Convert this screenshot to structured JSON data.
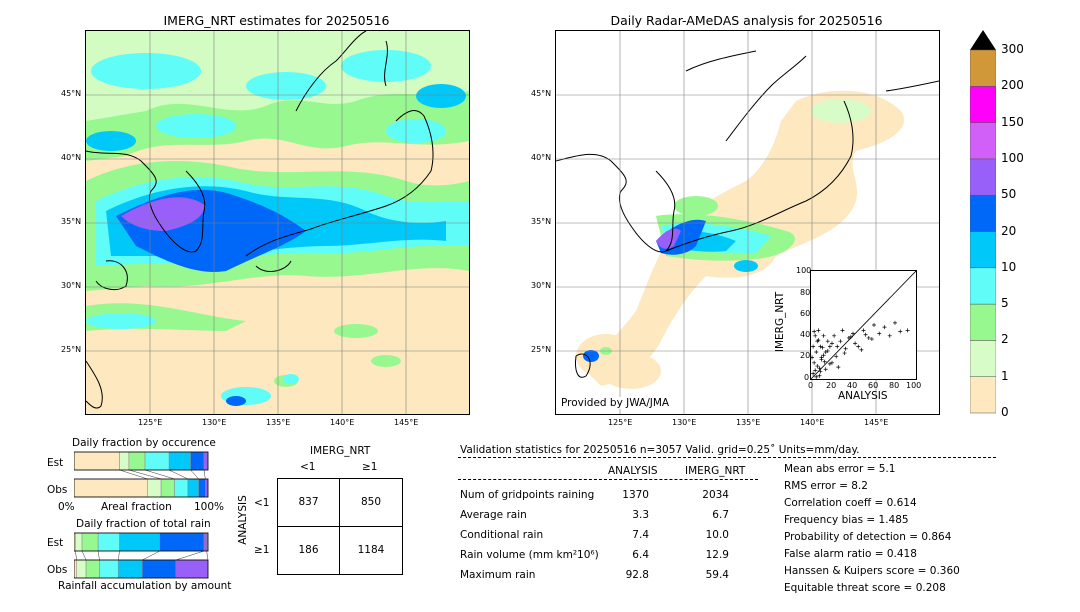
{
  "left_map": {
    "title": "IMERG_NRT estimates for 20250516",
    "lat_labels": [
      "45°N",
      "40°N",
      "35°N",
      "30°N",
      "25°N"
    ],
    "lon_labels": [
      "125°E",
      "130°E",
      "135°E",
      "140°E",
      "145°E"
    ]
  },
  "right_map": {
    "title": "Daily Radar-AMeDAS analysis for 20250516",
    "lat_labels": [
      "45°N",
      "40°N",
      "35°N",
      "30°N",
      "25°N"
    ],
    "lon_labels": [
      "125°E",
      "130°E",
      "135°E",
      "140°E",
      "145°E"
    ],
    "credit": "Provided by JWA/JMA"
  },
  "colorbar": {
    "levels": [
      "0",
      "1",
      "2",
      "5",
      "10",
      "20",
      "50",
      "100",
      "150",
      "200",
      "300"
    ],
    "colors": [
      "#fde8c0",
      "#d8fcc8",
      "#98f890",
      "#60fcf8",
      "#00c8f8",
      "#0068f8",
      "#9860f8",
      "#d060f8",
      "#ff00f8",
      "#d09838"
    ],
    "over_color": "#000000"
  },
  "scatter": {
    "xlabel": "ANALYSIS",
    "ylabel": "IMERG_NRT",
    "ticks": [
      "0",
      "20",
      "40",
      "60",
      "80",
      "100"
    ]
  },
  "occurrence": {
    "title": "Daily fraction by occurence",
    "rows": [
      "Est",
      "Obs"
    ],
    "axis_left": "0%",
    "axis_mid": "Areal fraction",
    "axis_right": "100%"
  },
  "total_rain": {
    "title": "Daily fraction of total rain",
    "rows": [
      "Est",
      "Obs"
    ],
    "footer": "Rainfall accumulation by amount"
  },
  "contingency": {
    "col_title": "IMERG_NRT",
    "col_labels": [
      "<1",
      "≥1"
    ],
    "row_title": "ANALYSIS",
    "row_labels": [
      "<1",
      "≥1"
    ],
    "cells": [
      [
        "837",
        "850"
      ],
      [
        "186",
        "1184"
      ]
    ]
  },
  "validation": {
    "header": "Validation statistics for 20250516  n=3057 Valid. grid=0.25˚ Units=mm/day.",
    "col_analysis": "ANALYSIS",
    "col_imerg": "IMERG_NRT",
    "rows": [
      {
        "label": "Num of gridpoints raining",
        "analysis": "1370",
        "imerg": "2034"
      },
      {
        "label": "Average rain",
        "analysis": "3.3",
        "imerg": "6.7"
      },
      {
        "label": "Conditional rain",
        "analysis": "7.4",
        "imerg": "10.0"
      },
      {
        "label": "Rain volume (mm km²10⁶)",
        "analysis": "6.4",
        "imerg": "12.9"
      },
      {
        "label": "Maximum rain",
        "analysis": "92.8",
        "imerg": "59.4"
      }
    ],
    "scores": [
      "Mean abs error =    5.1",
      "RMS error =    8.2",
      "Correlation coeff =  0.614",
      "Frequency bias =  1.485",
      "Probability of detection =  0.864",
      "False alarm ratio =  0.418",
      "Hanssen & Kuipers score =  0.360",
      "Equitable threat score =  0.208"
    ]
  },
  "chart_data": [
    {
      "type": "table",
      "title": "IMERG_NRT estimates for 20250516",
      "x_ticks": [
        "125°E",
        "130°E",
        "135°E",
        "140°E",
        "145°E"
      ],
      "y_ticks": [
        "45°N",
        "40°N",
        "35°N",
        "30°N",
        "25°N"
      ]
    },
    {
      "type": "table",
      "title": "Daily Radar-AMeDAS analysis for 20250516",
      "x_ticks": [
        "125°E",
        "130°E",
        "135°E",
        "140°E",
        "145°E"
      ],
      "y_ticks": [
        "45°N",
        "40°N",
        "35°N",
        "30°N",
        "25°N"
      ]
    },
    {
      "type": "scatter",
      "xlabel": "ANALYSIS",
      "ylabel": "IMERG_NRT",
      "xlim": [
        0,
        100
      ],
      "ylim": [
        0,
        100
      ],
      "x_ticks": [
        0,
        20,
        40,
        60,
        80,
        100
      ],
      "y_ticks": [
        0,
        20,
        40,
        60,
        80,
        100
      ],
      "points_x": [
        1,
        2,
        3,
        4,
        5,
        6,
        7,
        8,
        9,
        10,
        12,
        14,
        16,
        18,
        20,
        22,
        25,
        28,
        30,
        33,
        36,
        40,
        45,
        50,
        55,
        60,
        65,
        70,
        75,
        80,
        85,
        92,
        2,
        4,
        6,
        8,
        10,
        12,
        14,
        16,
        18,
        20,
        3,
        5,
        7,
        9,
        11,
        13,
        24,
        26,
        32,
        38,
        42,
        48,
        52,
        58
      ],
      "points_y": [
        20,
        30,
        15,
        40,
        25,
        35,
        45,
        10,
        30,
        20,
        40,
        25,
        35,
        30,
        15,
        40,
        30,
        35,
        45,
        28,
        38,
        42,
        30,
        45,
        38,
        50,
        42,
        48,
        40,
        52,
        44,
        45,
        5,
        8,
        12,
        3,
        18,
        22,
        9,
        26,
        14,
        33,
        44,
        2,
        36,
        7,
        29,
        16,
        21,
        11,
        24,
        39,
        33,
        27,
        41,
        37
      ]
    },
    {
      "type": "bar",
      "title": "Daily fraction by occurence",
      "categories": [
        "Est",
        "Obs"
      ],
      "stack_colors": [
        "#fde8c0",
        "#d8fcc8",
        "#98f890",
        "#60fcf8",
        "#00c8f8",
        "#0068f8",
        "#9860f8"
      ],
      "series": [
        {
          "values_est": [
            0.34,
            0.07,
            0.12,
            0.18,
            0.16,
            0.1,
            0.03
          ]
        },
        {
          "values_obs": [
            0.55,
            0.1,
            0.1,
            0.1,
            0.08,
            0.05,
            0.02
          ]
        }
      ],
      "xlabel": "Areal fraction"
    },
    {
      "type": "bar",
      "title": "Daily fraction of total rain",
      "categories": [
        "Est",
        "Obs"
      ],
      "stack_colors": [
        "#fde8c0",
        "#d8fcc8",
        "#98f890",
        "#60fcf8",
        "#00c8f8",
        "#0068f8",
        "#9860f8",
        "#d060f8"
      ],
      "series": [
        {
          "values_est": [
            0.01,
            0.05,
            0.12,
            0.16,
            0.3,
            0.33,
            0.02,
            0.01
          ]
        },
        {
          "values_obs": [
            0.02,
            0.07,
            0.1,
            0.14,
            0.18,
            0.25,
            0.24,
            0.0
          ]
        }
      ],
      "xlabel": "Rainfall accumulation by amount"
    }
  ]
}
